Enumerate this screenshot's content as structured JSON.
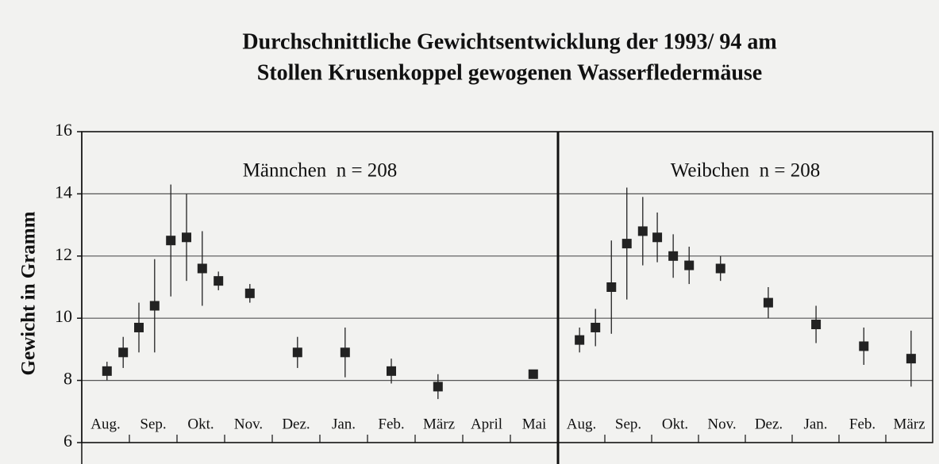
{
  "chart_data": [
    {
      "type": "scatter",
      "title": [
        "Durchschnittliche Gewichtsentwicklung der 1993/ 94 am",
        "Stollen Krusenkoppel gewogenen Wasserfledermäuse"
      ],
      "y_label": "Gewicht in Gramm",
      "panel_label": "Männchen  n = 208",
      "x": [
        0.53,
        0.87,
        1.2,
        1.53,
        1.87,
        2.2,
        2.53,
        2.87,
        3.53,
        4.53,
        5.53,
        6.5,
        7.48,
        9.48
      ],
      "values": [
        8.3,
        8.9,
        9.7,
        10.4,
        12.5,
        12.6,
        11.6,
        11.2,
        10.8,
        8.9,
        8.9,
        8.3,
        7.8,
        8.2
      ],
      "errors": [
        0.3,
        0.5,
        0.8,
        1.5,
        1.8,
        1.4,
        1.2,
        0.3,
        0.3,
        0.5,
        0.8,
        0.4,
        0.4,
        0
      ],
      "xlim": [
        0,
        10
      ],
      "xticks": [
        {
          "value": 0.5,
          "label": "Aug."
        },
        {
          "value": 1.5,
          "label": "Sep."
        },
        {
          "value": 2.5,
          "label": "Okt."
        },
        {
          "value": 3.5,
          "label": "Nov."
        },
        {
          "value": 4.5,
          "label": "Dez."
        },
        {
          "value": 5.5,
          "label": "Jan."
        },
        {
          "value": 6.5,
          "label": "Feb."
        },
        {
          "value": 7.5,
          "label": "März"
        },
        {
          "value": 8.5,
          "label": "April"
        },
        {
          "value": 9.5,
          "label": "Mai"
        }
      ],
      "ylim": [
        6,
        16
      ],
      "yticks": [
        6,
        8,
        10,
        12,
        14,
        16
      ],
      "grid": true,
      "color": "#222222"
    },
    {
      "type": "scatter",
      "panel_label": "Weibchen  n = 208",
      "x": [
        0.46,
        0.8,
        1.14,
        1.47,
        1.81,
        2.12,
        2.46,
        2.8,
        3.47,
        4.49,
        5.51,
        6.53,
        7.54
      ],
      "values": [
        9.3,
        9.7,
        11.0,
        12.4,
        12.8,
        12.6,
        12.0,
        11.7,
        11.6,
        10.5,
        9.8,
        9.1,
        8.7
      ],
      "errors": [
        0.4,
        0.6,
        1.5,
        1.8,
        1.1,
        0.8,
        0.7,
        0.6,
        0.4,
        0.5,
        0.6,
        0.6,
        0.9
      ],
      "xlim": [
        0,
        8
      ],
      "xticks": [
        {
          "value": 0.5,
          "label": "Aug."
        },
        {
          "value": 1.5,
          "label": "Sep."
        },
        {
          "value": 2.5,
          "label": "Okt."
        },
        {
          "value": 3.5,
          "label": "Nov."
        },
        {
          "value": 4.5,
          "label": "Dez."
        },
        {
          "value": 5.5,
          "label": "Jan."
        },
        {
          "value": 6.5,
          "label": "Feb."
        },
        {
          "value": 7.5,
          "label": "März"
        }
      ],
      "ylim": [
        6,
        16
      ],
      "yticks": [
        6,
        8,
        10,
        12,
        14,
        16
      ],
      "grid": true,
      "color": "#222222"
    }
  ]
}
